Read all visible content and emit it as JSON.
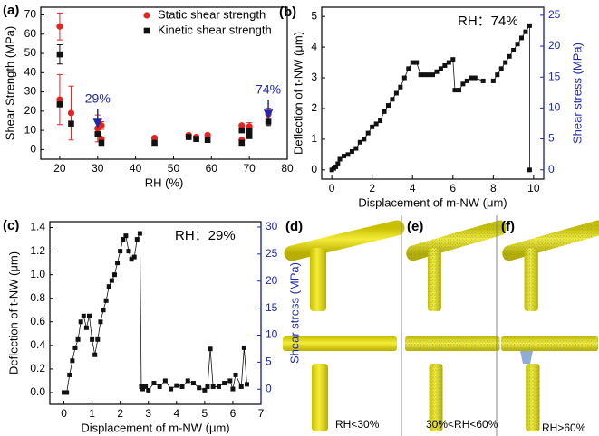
{
  "chart_data": [
    {
      "type": "scatter",
      "panel_label": "(a)",
      "xlabel": "RH (%)",
      "ylabel": "Shear Strength (MPa)",
      "xlim": [
        15,
        80
      ],
      "xticks": [
        20,
        30,
        40,
        50,
        60,
        70,
        80
      ],
      "ylim": [
        -5,
        74
      ],
      "yticks": [
        0,
        10,
        20,
        30,
        40,
        50,
        60,
        70
      ],
      "legend": "upper right",
      "series": [
        {
          "name": "Static shear strength",
          "color": "#e8231f",
          "marker": "circle",
          "x": [
            20,
            20,
            23,
            30,
            31,
            31,
            45,
            54,
            56,
            59,
            68,
            68,
            70,
            75
          ],
          "values": [
            64,
            26,
            19,
            11,
            12.5,
            5.5,
            6,
            7.5,
            6.5,
            7.5,
            12.5,
            5,
            12,
            18.5
          ],
          "errors": [
            7,
            13,
            14,
            7,
            2,
            null,
            null,
            null,
            null,
            null,
            null,
            null,
            2,
            3
          ]
        },
        {
          "name": "Kinetic shear strength",
          "color": "#111111",
          "marker": "square",
          "x": [
            20,
            20,
            23,
            30,
            31,
            45,
            54,
            56,
            59,
            68,
            68,
            70,
            70,
            75
          ],
          "values": [
            49.5,
            23.5,
            13.5,
            8,
            3.5,
            3.5,
            6.5,
            5.5,
            5,
            10,
            3.5,
            7,
            9.5,
            14.5
          ],
          "errors": [
            5,
            null,
            null,
            null,
            null,
            null,
            null,
            null,
            null,
            null,
            null,
            null,
            null,
            2
          ]
        }
      ],
      "annotation_color": "#1f2aa8",
      "annotations": [
        {
          "text": "29%",
          "x": 30
        },
        {
          "text": "74%",
          "x": 75
        }
      ]
    },
    {
      "type": "line",
      "panel_label": "(b)",
      "xlabel": "Displacement of m-NW (μm)",
      "ylabel": "Deflection of t-NW (μm)",
      "y2label": "Shear stress (MPa)",
      "y2color": "#1f2aa8",
      "color": "#111111",
      "annotation": "RH：74%",
      "xlim": [
        -0.5,
        10.5
      ],
      "xticks": [
        0,
        2,
        4,
        6,
        8,
        10
      ],
      "ylim": [
        -0.3,
        5.3
      ],
      "yticks": [
        0,
        1,
        2,
        3,
        4,
        5
      ],
      "y2lim": [
        -1.5,
        26.3
      ],
      "y2ticks": [
        0,
        5,
        10,
        15,
        20,
        25
      ],
      "x": [
        0,
        0.1,
        0.2,
        0.3,
        0.4,
        0.6,
        0.8,
        1.0,
        1.2,
        1.4,
        1.6,
        1.8,
        2.0,
        2.2,
        2.4,
        2.6,
        2.8,
        3.0,
        3.2,
        3.4,
        3.6,
        3.8,
        4.0,
        4.2,
        4.4,
        4.6,
        4.8,
        5.0,
        5.2,
        5.4,
        5.6,
        5.8,
        6.0,
        6.1,
        6.3,
        6.5,
        6.7,
        6.9,
        7.1,
        7.5,
        8.0,
        8.2,
        8.4,
        8.6,
        8.8,
        9.0,
        9.2,
        9.4,
        9.6,
        9.8,
        9.8
      ],
      "values": [
        0,
        0.05,
        0.1,
        0.2,
        0.35,
        0.45,
        0.5,
        0.6,
        0.7,
        0.9,
        1.0,
        1.2,
        1.4,
        1.5,
        1.6,
        1.9,
        2.1,
        2.3,
        2.5,
        2.7,
        3.0,
        3.3,
        3.5,
        3.5,
        3.1,
        3.1,
        3.1,
        3.1,
        3.2,
        3.3,
        3.4,
        3.5,
        3.6,
        2.6,
        2.6,
        2.8,
        2.9,
        3.0,
        3.0,
        2.9,
        2.9,
        3.1,
        3.3,
        3.5,
        3.7,
        3.9,
        4.1,
        4.3,
        4.5,
        4.7,
        0
      ]
    },
    {
      "type": "line",
      "panel_label": "(c)",
      "xlabel": "Displacement of m-NW (μm)",
      "ylabel": "Deflection of t-NW (μm)",
      "y2label": "Shear stress (MPa)",
      "y2color": "#1f2aa8",
      "color": "#111111",
      "annotation": "RH：29%",
      "xlim": [
        -0.5,
        7
      ],
      "xticks": [
        0,
        1,
        2,
        3,
        4,
        5,
        6,
        7
      ],
      "ylim": [
        -0.1,
        1.45
      ],
      "yticks": [
        {
          "value": 0,
          "label": "0.0"
        },
        0.2,
        0.4,
        0.6,
        0.8,
        {
          "value": 1,
          "label": "1.0"
        },
        1.2,
        1.4
      ],
      "y2lim": [
        -2.8,
        31
      ],
      "y2ticks": [
        0,
        5,
        10,
        15,
        20,
        25,
        30
      ],
      "x": [
        0,
        0.1,
        0.2,
        0.3,
        0.4,
        0.5,
        0.6,
        0.7,
        0.8,
        0.9,
        1.0,
        1.1,
        1.2,
        1.3,
        1.4,
        1.5,
        1.6,
        1.7,
        1.8,
        1.9,
        2.0,
        2.1,
        2.2,
        2.3,
        2.4,
        2.5,
        2.6,
        2.7,
        2.75,
        2.8,
        2.9,
        3.0,
        3.2,
        3.4,
        3.6,
        3.8,
        4.0,
        4.2,
        4.4,
        4.6,
        4.8,
        5.0,
        5.1,
        5.2,
        5.3,
        5.5,
        5.7,
        5.9,
        6.0,
        6.1,
        6.3,
        6.4,
        6.5
      ],
      "values": [
        0,
        0,
        0.15,
        0.27,
        0.38,
        0.45,
        0.6,
        0.65,
        0.55,
        0.65,
        0.45,
        0.32,
        0.45,
        0.6,
        0.7,
        0.78,
        0.9,
        0.95,
        1.0,
        1.1,
        1.2,
        1.3,
        1.33,
        1.2,
        1.13,
        1.15,
        1.3,
        1.35,
        0.05,
        0.03,
        0.05,
        0.02,
        0.08,
        0.05,
        0.1,
        0.03,
        0.06,
        0.05,
        0.1,
        0.08,
        0.04,
        0.02,
        0.05,
        0.37,
        0.05,
        0.05,
        0.08,
        0.1,
        0.03,
        0.15,
        0.05,
        0.38,
        0.07
      ]
    }
  ],
  "illustrations": [
    {
      "label": "(d)",
      "caption": "RH<30%"
    },
    {
      "label": "(e)",
      "caption": "30%<RH<60%"
    },
    {
      "label": "(f)",
      "caption": "RH>60%"
    }
  ]
}
